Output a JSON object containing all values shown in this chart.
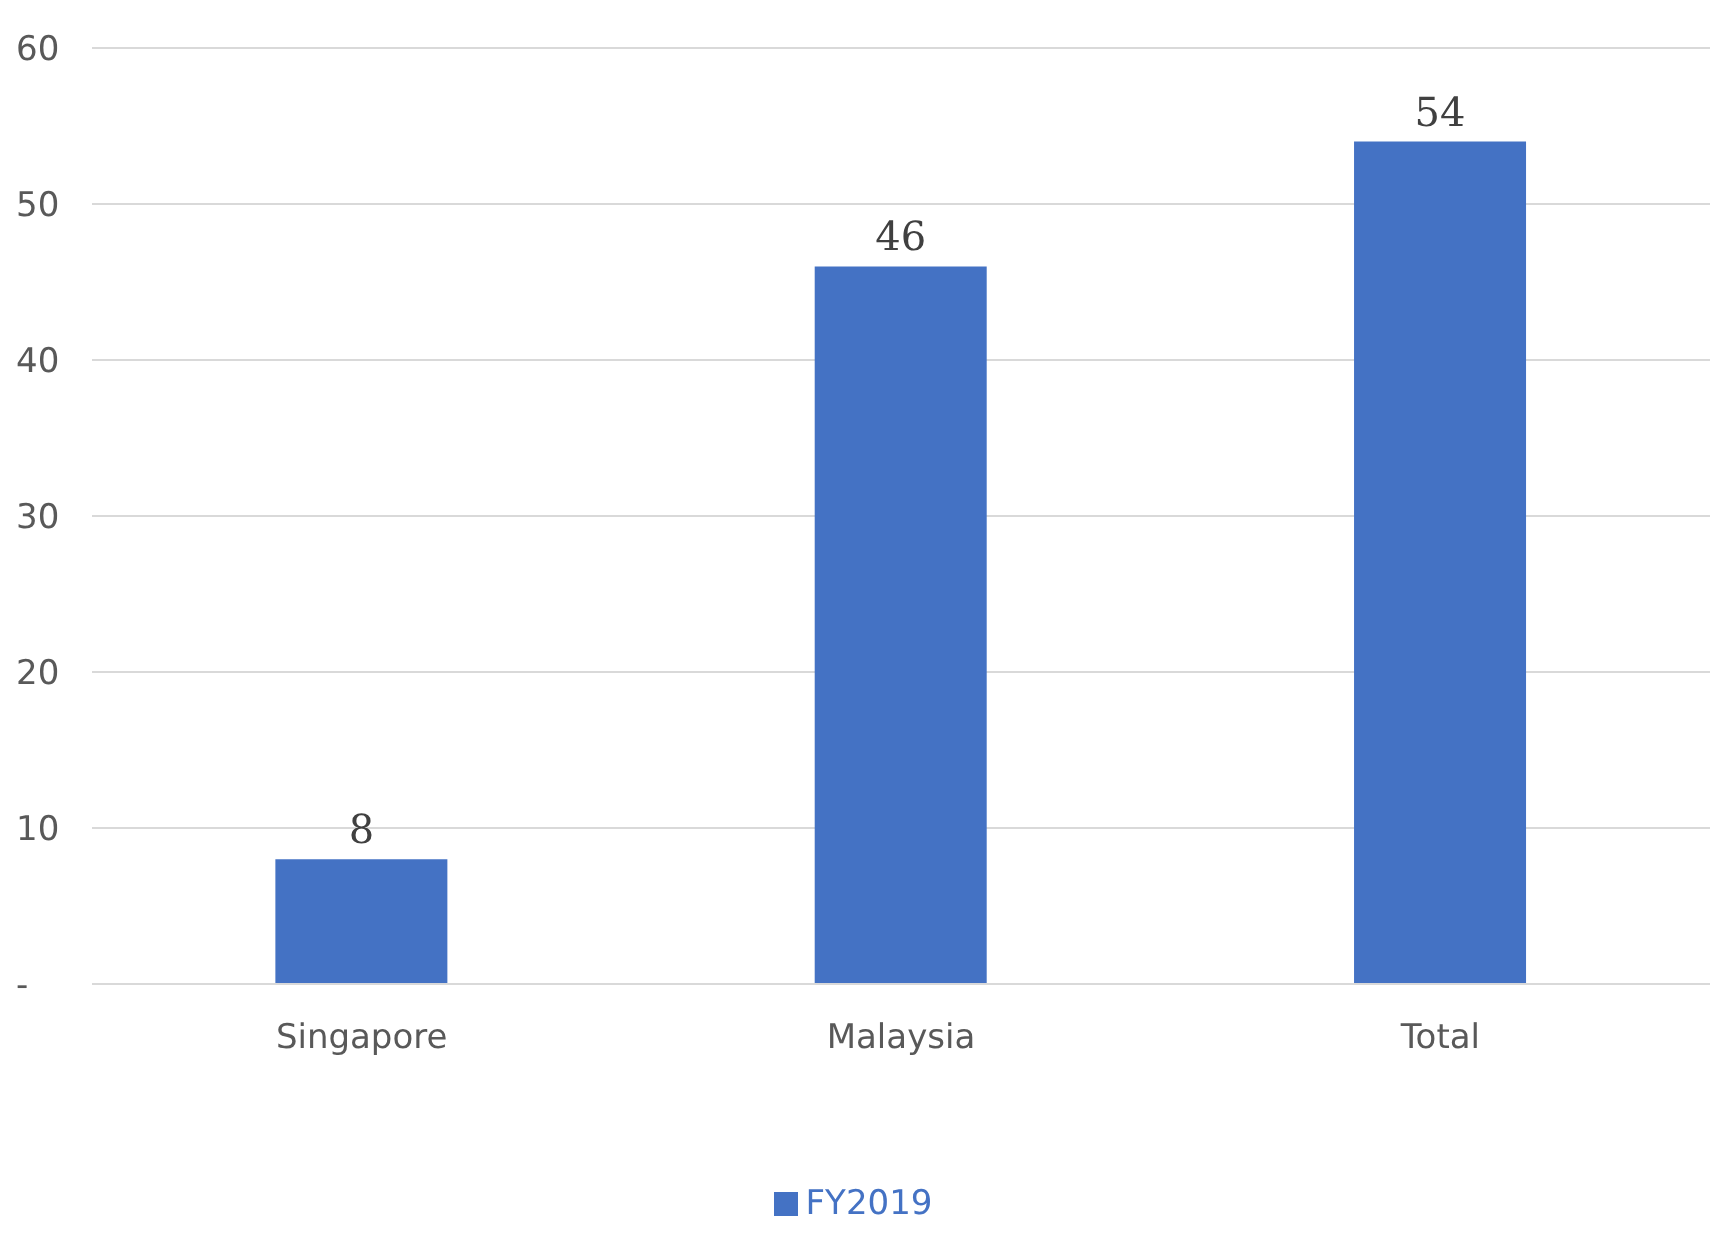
{
  "chart_data": {
    "type": "bar",
    "categories": [
      "Singapore",
      "Malaysia",
      "Total"
    ],
    "series": [
      {
        "name": "FY2019",
        "color": "#4472c4",
        "values": [
          8,
          46,
          54
        ]
      }
    ],
    "ylim": [
      0,
      60
    ],
    "yticks": [
      {
        "value": 0,
        "label": "-"
      },
      10,
      20,
      30,
      40,
      50,
      60
    ],
    "grid": "y",
    "legend": "bottom",
    "data_labels": true
  }
}
